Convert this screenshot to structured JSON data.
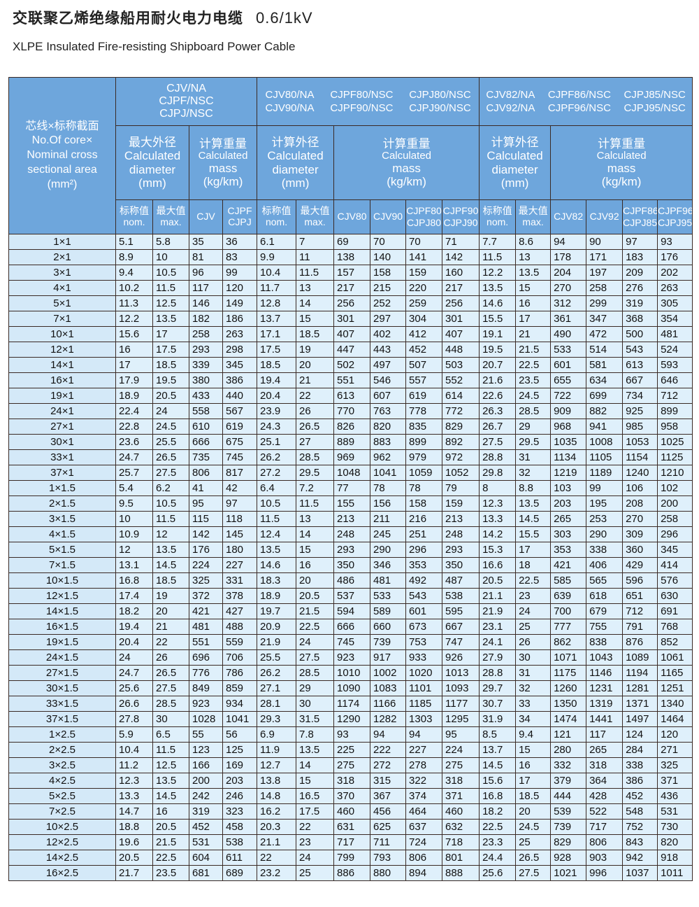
{
  "title": "交联聚乙烯绝缘船用耐火电力电缆",
  "voltage": "0.6/1kV",
  "subtitle": "XLPE Insulated Fire-resisting Shipboard Power Cable",
  "header": {
    "corner": [
      "芯线×标称截面",
      "No.Of core×",
      "Nominal cross",
      "sectional area",
      "(mm²)"
    ],
    "group1": [
      "CJV/NA",
      "CJPF/NSC",
      "CJPJ/NSC"
    ],
    "group2": [
      [
        "CJV80/NA",
        "CJV90/NA"
      ],
      [
        "CJPF80/NSC",
        "CJPF90/NSC"
      ],
      [
        "CJPJ80/NSC",
        "CJPJ90/NSC"
      ]
    ],
    "group3": [
      [
        "CJV82/NA",
        "CJV92/NA"
      ],
      [
        "CJPF86/NSC",
        "CJPF96/NSC"
      ],
      [
        "CJPJ85/NSC",
        "CJPJ95/NSC"
      ]
    ],
    "max_diameter": [
      "最大外径",
      "Calculated",
      "diameter",
      "(mm)"
    ],
    "calc_diameter": [
      "计算外径",
      "Calculated",
      "diameter",
      "(mm)"
    ],
    "calc_mass": [
      "计算重量",
      "Calculated",
      "mass",
      "(kg/km)"
    ],
    "sub": [
      [
        "标称值",
        "nom."
      ],
      [
        "最大值",
        "max."
      ],
      [
        "CJV"
      ],
      [
        "CJPF",
        "CJPJ"
      ],
      [
        "标称值",
        "nom."
      ],
      [
        "最大值",
        "max."
      ],
      [
        "CJV80"
      ],
      [
        "CJV90"
      ],
      [
        "CJPF80",
        "CJPJ80"
      ],
      [
        "CJPF90",
        "CJPJ90"
      ],
      [
        "标称值",
        "nom."
      ],
      [
        "最大值",
        "max."
      ],
      [
        "CJV82"
      ],
      [
        "CJV92"
      ],
      [
        "CJPF86",
        "CJPJ85"
      ],
      [
        "CJPF96",
        "CJPJ95"
      ]
    ]
  },
  "rows": [
    [
      "1×1",
      "5.1",
      "5.8",
      "35",
      "36",
      "6.1",
      "7",
      "69",
      "70",
      "70",
      "71",
      "7.7",
      "8.6",
      "94",
      "90",
      "97",
      "93"
    ],
    [
      "2×1",
      "8.9",
      "10",
      "81",
      "83",
      "9.9",
      "11",
      "138",
      "140",
      "141",
      "142",
      "11.5",
      "13",
      "178",
      "171",
      "183",
      "176"
    ],
    [
      "3×1",
      "9.4",
      "10.5",
      "96",
      "99",
      "10.4",
      "11.5",
      "157",
      "158",
      "159",
      "160",
      "12.2",
      "13.5",
      "204",
      "197",
      "209",
      "202"
    ],
    [
      "4×1",
      "10.2",
      "11.5",
      "117",
      "120",
      "11.7",
      "13",
      "217",
      "215",
      "220",
      "217",
      "13.5",
      "15",
      "270",
      "258",
      "276",
      "263"
    ],
    [
      "5×1",
      "11.3",
      "12.5",
      "146",
      "149",
      "12.8",
      "14",
      "256",
      "252",
      "259",
      "256",
      "14.6",
      "16",
      "312",
      "299",
      "319",
      "305"
    ],
    [
      "7×1",
      "12.2",
      "13.5",
      "182",
      "186",
      "13.7",
      "15",
      "301",
      "297",
      "304",
      "301",
      "15.5",
      "17",
      "361",
      "347",
      "368",
      "354"
    ],
    [
      "10×1",
      "15.6",
      "17",
      "258",
      "263",
      "17.1",
      "18.5",
      "407",
      "402",
      "412",
      "407",
      "19.1",
      "21",
      "490",
      "472",
      "500",
      "481"
    ],
    [
      "12×1",
      "16",
      "17.5",
      "293",
      "298",
      "17.5",
      "19",
      "447",
      "443",
      "452",
      "448",
      "19.5",
      "21.5",
      "533",
      "514",
      "543",
      "524"
    ],
    [
      "14×1",
      "17",
      "18.5",
      "339",
      "345",
      "18.5",
      "20",
      "502",
      "497",
      "507",
      "503",
      "20.7",
      "22.5",
      "601",
      "581",
      "613",
      "593"
    ],
    [
      "16×1",
      "17.9",
      "19.5",
      "380",
      "386",
      "19.4",
      "21",
      "551",
      "546",
      "557",
      "552",
      "21.6",
      "23.5",
      "655",
      "634",
      "667",
      "646"
    ],
    [
      "19×1",
      "18.9",
      "20.5",
      "433",
      "440",
      "20.4",
      "22",
      "613",
      "607",
      "619",
      "614",
      "22.6",
      "24.5",
      "722",
      "699",
      "734",
      "712"
    ],
    [
      "24×1",
      "22.4",
      "24",
      "558",
      "567",
      "23.9",
      "26",
      "770",
      "763",
      "778",
      "772",
      "26.3",
      "28.5",
      "909",
      "882",
      "925",
      "899"
    ],
    [
      "27×1",
      "22.8",
      "24.5",
      "610",
      "619",
      "24.3",
      "26.5",
      "826",
      "820",
      "835",
      "829",
      "26.7",
      "29",
      "968",
      "941",
      "985",
      "958"
    ],
    [
      "30×1",
      "23.6",
      "25.5",
      "666",
      "675",
      "25.1",
      "27",
      "889",
      "883",
      "899",
      "892",
      "27.5",
      "29.5",
      "1035",
      "1008",
      "1053",
      "1025"
    ],
    [
      "33×1",
      "24.7",
      "26.5",
      "735",
      "745",
      "26.2",
      "28.5",
      "969",
      "962",
      "979",
      "972",
      "28.8",
      "31",
      "1134",
      "1105",
      "1154",
      "1125"
    ],
    [
      "37×1",
      "25.7",
      "27.5",
      "806",
      "817",
      "27.2",
      "29.5",
      "1048",
      "1041",
      "1059",
      "1052",
      "29.8",
      "32",
      "1219",
      "1189",
      "1240",
      "1210"
    ],
    [
      "1×1.5",
      "5.4",
      "6.2",
      "41",
      "42",
      "6.4",
      "7.2",
      "77",
      "78",
      "78",
      "79",
      "8",
      "8.8",
      "103",
      "99",
      "106",
      "102"
    ],
    [
      "2×1.5",
      "9.5",
      "10.5",
      "95",
      "97",
      "10.5",
      "11.5",
      "155",
      "156",
      "158",
      "159",
      "12.3",
      "13.5",
      "203",
      "195",
      "208",
      "200"
    ],
    [
      "3×1.5",
      "10",
      "11.5",
      "115",
      "118",
      "11.5",
      "13",
      "213",
      "211",
      "216",
      "213",
      "13.3",
      "14.5",
      "265",
      "253",
      "270",
      "258"
    ],
    [
      "4×1.5",
      "10.9",
      "12",
      "142",
      "145",
      "12.4",
      "14",
      "248",
      "245",
      "251",
      "248",
      "14.2",
      "15.5",
      "303",
      "290",
      "309",
      "296"
    ],
    [
      "5×1.5",
      "12",
      "13.5",
      "176",
      "180",
      "13.5",
      "15",
      "293",
      "290",
      "296",
      "293",
      "15.3",
      "17",
      "353",
      "338",
      "360",
      "345"
    ],
    [
      "7×1.5",
      "13.1",
      "14.5",
      "224",
      "227",
      "14.6",
      "16",
      "350",
      "346",
      "353",
      "350",
      "16.6",
      "18",
      "421",
      "406",
      "429",
      "414"
    ],
    [
      "10×1.5",
      "16.8",
      "18.5",
      "325",
      "331",
      "18.3",
      "20",
      "486",
      "481",
      "492",
      "487",
      "20.5",
      "22.5",
      "585",
      "565",
      "596",
      "576"
    ],
    [
      "12×1.5",
      "17.4",
      "19",
      "372",
      "378",
      "18.9",
      "20.5",
      "537",
      "533",
      "543",
      "538",
      "21.1",
      "23",
      "639",
      "618",
      "651",
      "630"
    ],
    [
      "14×1.5",
      "18.2",
      "20",
      "421",
      "427",
      "19.7",
      "21.5",
      "594",
      "589",
      "601",
      "595",
      "21.9",
      "24",
      "700",
      "679",
      "712",
      "691"
    ],
    [
      "16×1.5",
      "19.4",
      "21",
      "481",
      "488",
      "20.9",
      "22.5",
      "666",
      "660",
      "673",
      "667",
      "23.1",
      "25",
      "777",
      "755",
      "791",
      "768"
    ],
    [
      "19×1.5",
      "20.4",
      "22",
      "551",
      "559",
      "21.9",
      "24",
      "745",
      "739",
      "753",
      "747",
      "24.1",
      "26",
      "862",
      "838",
      "876",
      "852"
    ],
    [
      "24×1.5",
      "24",
      "26",
      "696",
      "706",
      "25.5",
      "27.5",
      "923",
      "917",
      "933",
      "926",
      "27.9",
      "30",
      "1071",
      "1043",
      "1089",
      "1061"
    ],
    [
      "27×1.5",
      "24.7",
      "26.5",
      "776",
      "786",
      "26.2",
      "28.5",
      "1010",
      "1002",
      "1020",
      "1013",
      "28.8",
      "31",
      "1175",
      "1146",
      "1194",
      "1165"
    ],
    [
      "30×1.5",
      "25.6",
      "27.5",
      "849",
      "859",
      "27.1",
      "29",
      "1090",
      "1083",
      "1101",
      "1093",
      "29.7",
      "32",
      "1260",
      "1231",
      "1281",
      "1251"
    ],
    [
      "33×1.5",
      "26.6",
      "28.5",
      "923",
      "934",
      "28.1",
      "30",
      "1174",
      "1166",
      "1185",
      "1177",
      "30.7",
      "33",
      "1350",
      "1319",
      "1371",
      "1340"
    ],
    [
      "37×1.5",
      "27.8",
      "30",
      "1028",
      "1041",
      "29.3",
      "31.5",
      "1290",
      "1282",
      "1303",
      "1295",
      "31.9",
      "34",
      "1474",
      "1441",
      "1497",
      "1464"
    ],
    [
      "1×2.5",
      "5.9",
      "6.5",
      "55",
      "56",
      "6.9",
      "7.8",
      "93",
      "94",
      "94",
      "95",
      "8.5",
      "9.4",
      "121",
      "117",
      "124",
      "120"
    ],
    [
      "2×2.5",
      "10.4",
      "11.5",
      "123",
      "125",
      "11.9",
      "13.5",
      "225",
      "222",
      "227",
      "224",
      "13.7",
      "15",
      "280",
      "265",
      "284",
      "271"
    ],
    [
      "3×2.5",
      "11.2",
      "12.5",
      "166",
      "169",
      "12.7",
      "14",
      "275",
      "272",
      "278",
      "275",
      "14.5",
      "16",
      "332",
      "318",
      "338",
      "325"
    ],
    [
      "4×2.5",
      "12.3",
      "13.5",
      "200",
      "203",
      "13.8",
      "15",
      "318",
      "315",
      "322",
      "318",
      "15.6",
      "17",
      "379",
      "364",
      "386",
      "371"
    ],
    [
      "5×2.5",
      "13.3",
      "14.5",
      "242",
      "246",
      "14.8",
      "16.5",
      "370",
      "367",
      "374",
      "371",
      "16.8",
      "18.5",
      "444",
      "428",
      "452",
      "436"
    ],
    [
      "7×2.5",
      "14.7",
      "16",
      "319",
      "323",
      "16.2",
      "17.5",
      "460",
      "456",
      "464",
      "460",
      "18.2",
      "20",
      "539",
      "522",
      "548",
      "531"
    ],
    [
      "10×2.5",
      "18.8",
      "20.5",
      "452",
      "458",
      "20.3",
      "22",
      "631",
      "625",
      "637",
      "632",
      "22.5",
      "24.5",
      "739",
      "717",
      "752",
      "730"
    ],
    [
      "12×2.5",
      "19.6",
      "21.5",
      "531",
      "538",
      "21.1",
      "23",
      "717",
      "711",
      "724",
      "718",
      "23.3",
      "25",
      "829",
      "806",
      "843",
      "820"
    ],
    [
      "14×2.5",
      "20.5",
      "22.5",
      "604",
      "611",
      "22",
      "24",
      "799",
      "793",
      "806",
      "801",
      "24.4",
      "26.5",
      "928",
      "903",
      "942",
      "918"
    ],
    [
      "16×2.5",
      "21.7",
      "23.5",
      "681",
      "689",
      "23.2",
      "25",
      "886",
      "880",
      "894",
      "888",
      "25.6",
      "27.5",
      "1021",
      "996",
      "1037",
      "1011"
    ]
  ]
}
